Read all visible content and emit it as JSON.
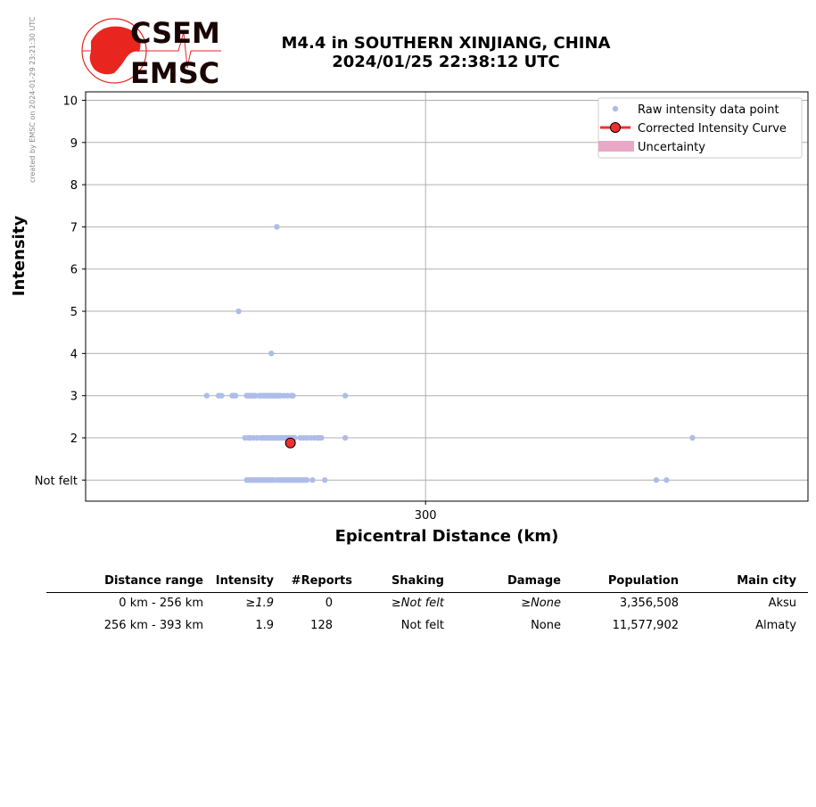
{
  "credit": "created by EMSC on 2024-01-29 23:21:30 UTC",
  "logo": {
    "top": "CSEM",
    "bottom": "EMSC",
    "color": "#e8261f"
  },
  "title": {
    "line1": "M4.4 in SOUTHERN XINJIANG, CHINA",
    "line2": "2024/01/25 22:38:12 UTC"
  },
  "chart_data": {
    "type": "scatter",
    "xlabel": "Epicentral Distance (km)",
    "ylabel": "Intensity",
    "xlim": [
      220,
      390
    ],
    "ylim": [
      0.5,
      10.2
    ],
    "x_ticks": [
      300
    ],
    "y_ticks": [
      {
        "value": 1,
        "label": "Not felt"
      },
      {
        "value": 2,
        "label": "2"
      },
      {
        "value": 3,
        "label": "3"
      },
      {
        "value": 4,
        "label": "4"
      },
      {
        "value": 5,
        "label": "5"
      },
      {
        "value": 6,
        "label": "6"
      },
      {
        "value": 7,
        "label": "7"
      },
      {
        "value": 8,
        "label": "8"
      },
      {
        "value": 9,
        "label": "9"
      },
      {
        "value": 10,
        "label": "10"
      }
    ],
    "grid": true,
    "legend_position": "top-right",
    "legend": [
      "Raw intensity data point",
      "Corrected Intensity Curve",
      "Uncertainty"
    ],
    "colors": {
      "raw": "#aebde8",
      "curve": "#f03030",
      "uncertainty": "#e8a8c6"
    },
    "series": [
      {
        "name": "Raw intensity data point",
        "points": [
          [
            265,
            7
          ],
          [
            256,
            5
          ],
          [
            263.7,
            4
          ],
          [
            248.5,
            3
          ],
          [
            251.3,
            3
          ],
          [
            252,
            3
          ],
          [
            254.5,
            3
          ],
          [
            254.9,
            3
          ],
          [
            255.3,
            3
          ],
          [
            257.9,
            3
          ],
          [
            258.3,
            3
          ],
          [
            258.7,
            3
          ],
          [
            259.2,
            3
          ],
          [
            259.6,
            3
          ],
          [
            260,
            3
          ],
          [
            260.9,
            3
          ],
          [
            261.3,
            3
          ],
          [
            261.7,
            3
          ],
          [
            262.1,
            3
          ],
          [
            262.6,
            3
          ],
          [
            263,
            3
          ],
          [
            263.4,
            3
          ],
          [
            263.8,
            3
          ],
          [
            264.2,
            3
          ],
          [
            264.6,
            3
          ],
          [
            265,
            3
          ],
          [
            265.5,
            3
          ],
          [
            265.9,
            3
          ],
          [
            266.7,
            3
          ],
          [
            267.5,
            3
          ],
          [
            268.4,
            3
          ],
          [
            268.8,
            3
          ],
          [
            281.1,
            3
          ],
          [
            257.5,
            2
          ],
          [
            258.3,
            2
          ],
          [
            258.8,
            2
          ],
          [
            259.6,
            2
          ],
          [
            260.4,
            2
          ],
          [
            261.3,
            2
          ],
          [
            261.7,
            2
          ],
          [
            262.1,
            2
          ],
          [
            262.6,
            2
          ],
          [
            263,
            2
          ],
          [
            263.4,
            2
          ],
          [
            263.8,
            2
          ],
          [
            264.2,
            2
          ],
          [
            264.6,
            2
          ],
          [
            265,
            2
          ],
          [
            265.5,
            2
          ],
          [
            265.9,
            2
          ],
          [
            266.3,
            2
          ],
          [
            266.7,
            2
          ],
          [
            267.1,
            2
          ],
          [
            267.5,
            2
          ],
          [
            267.9,
            2
          ],
          [
            268.4,
            2
          ],
          [
            268.8,
            2
          ],
          [
            269.2,
            2
          ],
          [
            270.5,
            2
          ],
          [
            271.3,
            2
          ],
          [
            272.1,
            2
          ],
          [
            273,
            2
          ],
          [
            273.8,
            2
          ],
          [
            274.6,
            2
          ],
          [
            275,
            2
          ],
          [
            275.5,
            2
          ],
          [
            281.1,
            2
          ],
          [
            362.8,
            2
          ],
          [
            257.9,
            1
          ],
          [
            258.3,
            1
          ],
          [
            258.7,
            1
          ],
          [
            259.2,
            1
          ],
          [
            259.6,
            1
          ],
          [
            260,
            1
          ],
          [
            260.4,
            1
          ],
          [
            260.9,
            1
          ],
          [
            261.3,
            1
          ],
          [
            261.7,
            1
          ],
          [
            262.1,
            1
          ],
          [
            262.6,
            1
          ],
          [
            263,
            1
          ],
          [
            263.4,
            1
          ],
          [
            263.8,
            1
          ],
          [
            264.2,
            1
          ],
          [
            265,
            1
          ],
          [
            265.5,
            1
          ],
          [
            265.9,
            1
          ],
          [
            266.3,
            1
          ],
          [
            266.7,
            1
          ],
          [
            267.1,
            1
          ],
          [
            267.5,
            1
          ],
          [
            267.9,
            1
          ],
          [
            268.4,
            1
          ],
          [
            268.8,
            1
          ],
          [
            269.2,
            1
          ],
          [
            269.6,
            1
          ],
          [
            270,
            1
          ],
          [
            270.5,
            1
          ],
          [
            270.9,
            1
          ],
          [
            271.3,
            1
          ],
          [
            271.7,
            1
          ],
          [
            272.1,
            1
          ],
          [
            273.4,
            1
          ],
          [
            276.3,
            1
          ],
          [
            354.3,
            1
          ],
          [
            356.7,
            1
          ]
        ]
      },
      {
        "name": "Corrected Intensity Curve",
        "points": [
          [
            268.2,
            1.88
          ]
        ]
      }
    ]
  },
  "table": {
    "headers": [
      "Distance range",
      "Intensity",
      "#Reports",
      "Shaking",
      "Damage",
      "Population",
      "Main city"
    ],
    "rows": [
      {
        "range": "0 km -  256 km",
        "intensity": "≥1.9",
        "reports": "0",
        "shaking": "≥Not felt",
        "damage": "≥None",
        "population": "3,356,508",
        "city": "Aksu"
      },
      {
        "range": "256 km -  393 km",
        "intensity": "1.9",
        "reports": "128",
        "shaking": "Not felt",
        "damage": "None",
        "population": "11,577,902",
        "city": "Almaty"
      }
    ]
  }
}
